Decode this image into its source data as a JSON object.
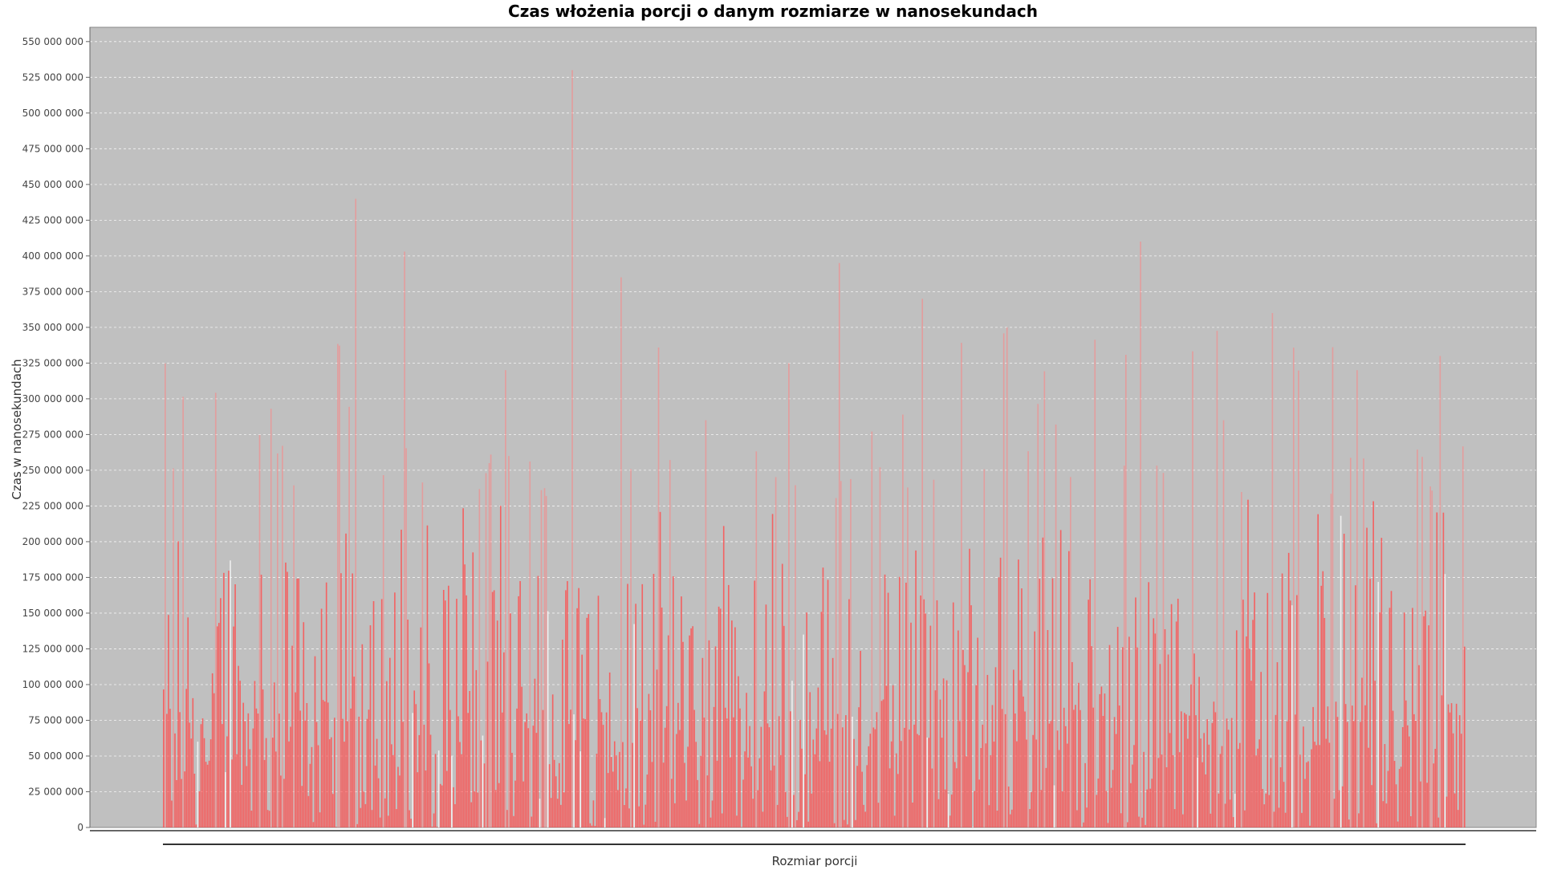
{
  "chart_data": {
    "type": "bar",
    "title": "Czas włożenia porcji o danym rozmiarze w nanosekundach",
    "xlabel": "Rozmiar porcji",
    "ylabel": "Czas w nanosekundach",
    "ylim": [
      0,
      560000000
    ],
    "yticks": [
      0,
      25000000,
      50000000,
      75000000,
      100000000,
      125000000,
      150000000,
      175000000,
      200000000,
      225000000,
      250000000,
      275000000,
      300000000,
      325000000,
      350000000,
      375000000,
      400000000,
      425000000,
      450000000,
      475000000,
      500000000,
      525000000,
      550000000
    ],
    "ytick_labels": [
      "0",
      "25 000 000",
      "50 000 000",
      "75 000 000",
      "100 000 000",
      "125 000 000",
      "150 000 000",
      "175 000 000",
      "200 000 000",
      "225 000 000",
      "250 000 000",
      "275 000 000",
      "300 000 000",
      "325 000 000",
      "350 000 000",
      "375 000 000",
      "400 000 000",
      "425 000 000",
      "450 000 000",
      "475 000 000",
      "500 000 000",
      "525 000 000",
      "550 000 000"
    ],
    "grid": true,
    "bar_count": 800,
    "peak_values": [
      147000000,
      293000000,
      440000000,
      403000000,
      255000000,
      530000000,
      385000000,
      285000000,
      325000000,
      395000000,
      370000000,
      350000000,
      282000000,
      410000000,
      285000000,
      360000000,
      320000000,
      330000000
    ],
    "colors": {
      "plot_background": "#c0c0c0",
      "bar": "#ff4a4a",
      "bar_light": "#ff8080",
      "bar_white": "#f4f4f4",
      "gridline": "#ffffff",
      "axis": "#666666"
    }
  }
}
